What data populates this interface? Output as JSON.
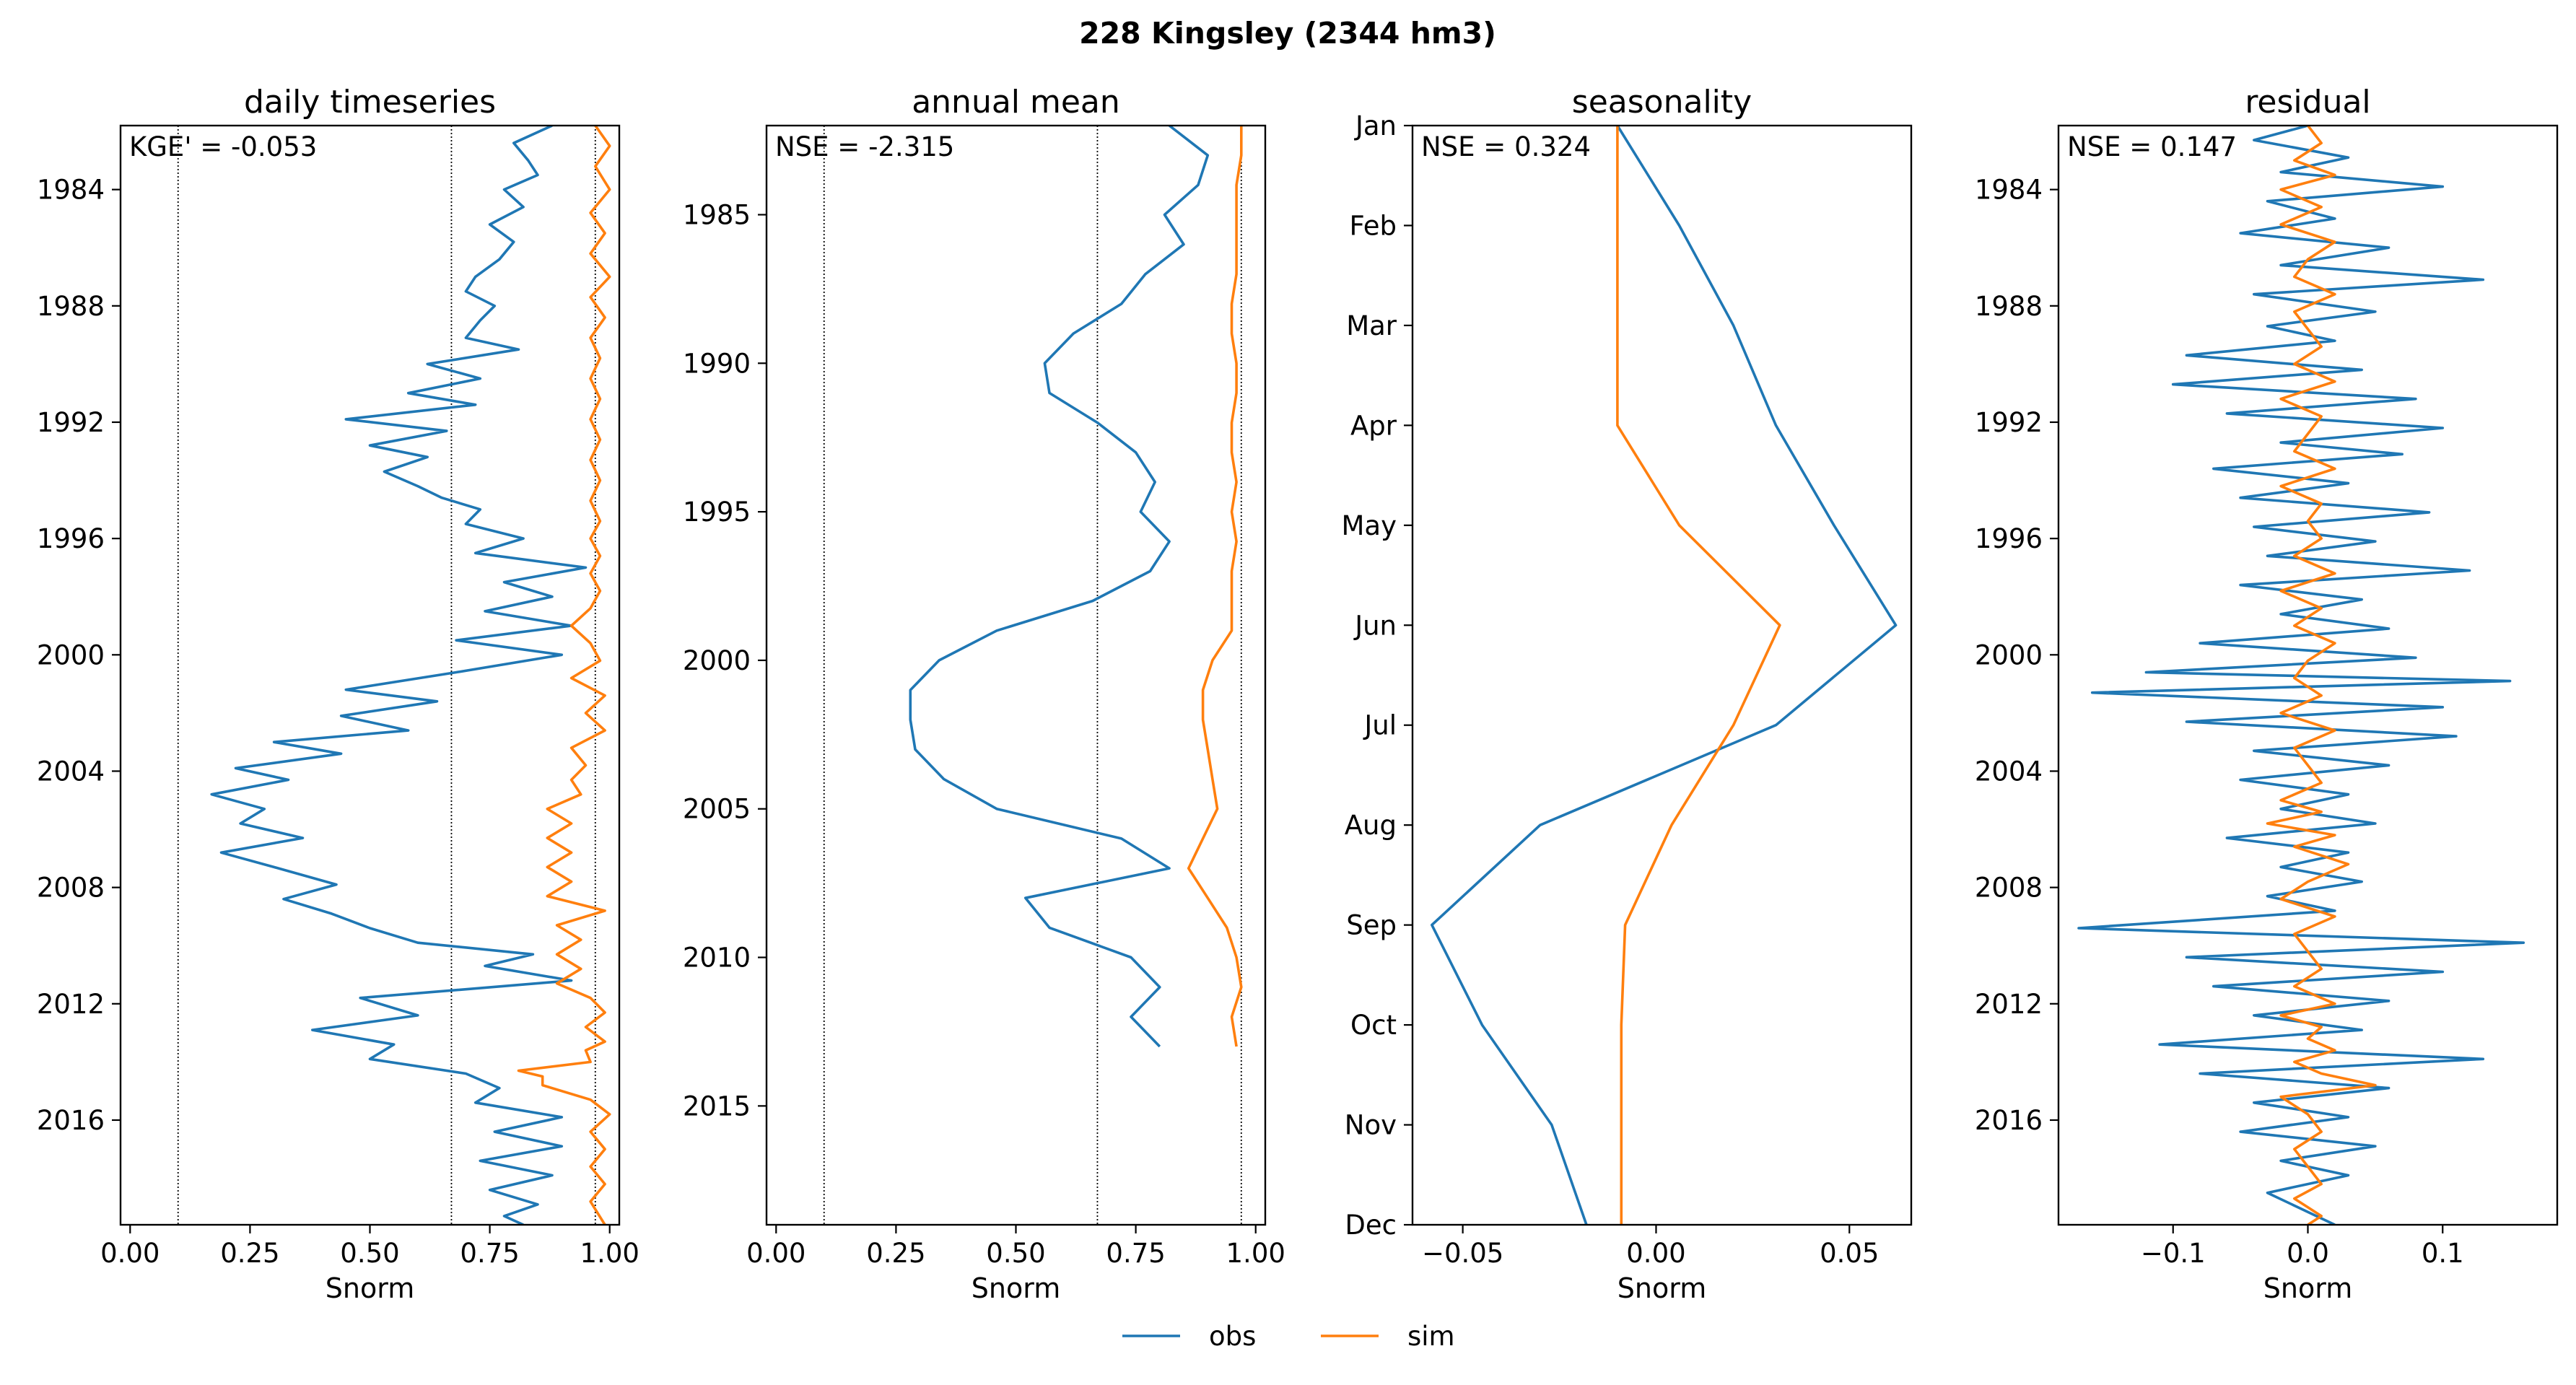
{
  "suptitle": "228  Kingsley (2344 hm3)",
  "colors": {
    "obs": "#1f77b4",
    "sim": "#ff7f0e"
  },
  "legend": [
    {
      "key": "obs",
      "label": "obs"
    },
    {
      "key": "sim",
      "label": "sim"
    }
  ],
  "chart_data": [
    {
      "type": "line",
      "title": "daily timeseries",
      "xlabel": "Snorm",
      "annotation": "KGE' = -0.053",
      "xlim": [
        -0.02,
        1.02
      ],
      "ylim": [
        2019.6,
        1981.8
      ],
      "xticks": [
        "0.00",
        "0.25",
        "0.50",
        "0.75",
        "1.00"
      ],
      "xtick_values": [
        0,
        0.25,
        0.5,
        0.75,
        1.0
      ],
      "yticks": [
        "1984",
        "1988",
        "1992",
        "1996",
        "2000",
        "2004",
        "2008",
        "2012",
        "2016"
      ],
      "ytick_values": [
        1984,
        1988,
        1992,
        1996,
        2000,
        2004,
        2008,
        2012,
        2016
      ],
      "vlines": [
        0.1,
        0.67,
        0.97
      ],
      "series": [
        {
          "key": "obs",
          "orientation": "vertical",
          "x": [
            0.88,
            0.8,
            0.83,
            0.85,
            0.78,
            0.82,
            0.75,
            0.8,
            0.77,
            0.72,
            0.7,
            0.76,
            0.73,
            0.7,
            0.81,
            0.62,
            0.73,
            0.58,
            0.72,
            0.45,
            0.66,
            0.5,
            0.62,
            0.53,
            0.6,
            0.65,
            0.73,
            0.7,
            0.82,
            0.72,
            0.95,
            0.78,
            0.88,
            0.74,
            0.92,
            0.68,
            0.9,
            0.68,
            0.45,
            0.64,
            0.44,
            0.58,
            0.3,
            0.44,
            0.22,
            0.33,
            0.17,
            0.28,
            0.23,
            0.36,
            0.19,
            0.3,
            0.43,
            0.32,
            0.42,
            0.5,
            0.6,
            0.84,
            0.74,
            0.92,
            0.48,
            0.6,
            0.38,
            0.55,
            0.5,
            0.7,
            0.77,
            0.72,
            0.9,
            0.76,
            0.9,
            0.73,
            0.88,
            0.75,
            0.85,
            0.78,
            0.82
          ],
          "y": [
            1981.8,
            1982.4,
            1983.0,
            1983.5,
            1984.0,
            1984.6,
            1985.2,
            1985.8,
            1986.4,
            1987.0,
            1987.5,
            1988.0,
            1988.5,
            1989.1,
            1989.5,
            1990.0,
            1990.5,
            1991.0,
            1991.4,
            1991.9,
            1992.3,
            1992.8,
            1993.2,
            1993.7,
            1994.2,
            1994.6,
            1995.0,
            1995.5,
            1996.0,
            1996.5,
            1997.0,
            1997.5,
            1998.0,
            1998.5,
            1999.0,
            1999.5,
            2000.0,
            2000.6,
            2001.2,
            2001.6,
            2002.1,
            2002.6,
            2003.0,
            2003.4,
            2003.9,
            2004.3,
            2004.8,
            2005.3,
            2005.8,
            2006.3,
            2006.8,
            2007.3,
            2007.9,
            2008.4,
            2008.9,
            2009.4,
            2009.9,
            2010.3,
            2010.7,
            2011.2,
            2011.8,
            2012.4,
            2012.9,
            2013.4,
            2013.9,
            2014.4,
            2014.9,
            2015.4,
            2015.9,
            2016.4,
            2016.9,
            2017.4,
            2017.9,
            2018.4,
            2018.9,
            2019.3,
            2019.6
          ]
        },
        {
          "key": "sim",
          "orientation": "vertical",
          "x": [
            0.97,
            1.0,
            0.97,
            1.0,
            0.96,
            0.99,
            0.96,
            1.0,
            0.96,
            0.99,
            0.96,
            0.98,
            0.96,
            0.98,
            0.96,
            0.98,
            0.96,
            0.98,
            0.96,
            0.98,
            0.96,
            0.98,
            0.96,
            0.98,
            0.96,
            0.92,
            0.96,
            0.98,
            0.92,
            0.99,
            0.95,
            0.99,
            0.92,
            0.95,
            0.92,
            0.94,
            0.87,
            0.92,
            0.87,
            0.92,
            0.87,
            0.92,
            0.87,
            0.99,
            0.89,
            0.94,
            0.89,
            0.94,
            0.89,
            0.96,
            0.99,
            0.95,
            0.99,
            0.95,
            0.96,
            0.81,
            0.86,
            0.86,
            0.96,
            1.0,
            0.96,
            0.99,
            0.96,
            0.99,
            0.96,
            0.99
          ],
          "y": [
            1981.8,
            1982.5,
            1983.2,
            1984.0,
            1984.8,
            1985.5,
            1986.2,
            1987.0,
            1987.7,
            1988.4,
            1989.1,
            1989.8,
            1990.5,
            1991.2,
            1991.9,
            1992.6,
            1993.3,
            1994.0,
            1994.7,
            1995.4,
            1996.0,
            1996.6,
            1997.2,
            1997.8,
            1998.4,
            1999.0,
            1999.6,
            2000.2,
            2000.8,
            2001.4,
            2002.0,
            2002.6,
            2003.2,
            2003.8,
            2004.3,
            2004.8,
            2005.3,
            2005.8,
            2006.3,
            2006.8,
            2007.3,
            2007.8,
            2008.3,
            2008.8,
            2009.3,
            2009.8,
            2010.3,
            2010.8,
            2011.3,
            2011.8,
            2012.3,
            2012.8,
            2013.3,
            2013.6,
            2014.0,
            2014.3,
            2014.5,
            2014.8,
            2015.3,
            2015.8,
            2016.4,
            2017.0,
            2017.6,
            2018.2,
            2018.8,
            2019.6
          ]
        }
      ]
    },
    {
      "type": "line",
      "title": "annual mean",
      "xlabel": "Snorm",
      "annotation": "NSE = -2.315",
      "xlim": [
        -0.02,
        1.02
      ],
      "ylim": [
        2019.0,
        1982.0
      ],
      "xticks": [
        "0.00",
        "0.25",
        "0.50",
        "0.75",
        "1.00"
      ],
      "xtick_values": [
        0,
        0.25,
        0.5,
        0.75,
        1.0
      ],
      "yticks": [
        "1985",
        "1990",
        "1995",
        "2000",
        "2005",
        "2010",
        "2015"
      ],
      "ytick_values": [
        1985,
        1990,
        1995,
        2000,
        2005,
        2010,
        2015
      ],
      "vlines": [
        0.1,
        0.67,
        0.97
      ],
      "series": [
        {
          "key": "obs",
          "orientation": "vertical",
          "x": [
            0.82,
            0.9,
            0.88,
            0.81,
            0.85,
            0.77,
            0.72,
            0.62,
            0.56,
            0.57,
            0.67,
            0.75,
            0.79,
            0.76,
            0.82,
            0.78,
            0.66,
            0.46,
            0.34,
            0.28,
            0.28,
            0.29,
            0.35,
            0.46,
            0.72,
            0.82,
            0.52,
            0.57,
            0.74,
            0.8,
            0.74,
            0.8
          ],
          "y": [
            1982,
            1983,
            1984,
            1985,
            1986,
            1987,
            1988,
            1989,
            1990,
            1991,
            1992,
            1993,
            1994,
            1995,
            1996,
            1997,
            1998,
            1999,
            2000,
            2001,
            2002,
            2003,
            2004,
            2005,
            2006,
            2007,
            2008,
            2009,
            2010,
            2011,
            2012,
            2013
          ]
        },
        {
          "key": "sim",
          "orientation": "vertical",
          "x": [
            0.97,
            0.97,
            0.96,
            0.96,
            0.96,
            0.96,
            0.95,
            0.95,
            0.96,
            0.96,
            0.95,
            0.95,
            0.96,
            0.95,
            0.96,
            0.95,
            0.95,
            0.95,
            0.91,
            0.89,
            0.89,
            0.9,
            0.91,
            0.92,
            0.89,
            0.86,
            0.9,
            0.94,
            0.96,
            0.97,
            0.95,
            0.96
          ],
          "y": [
            1982,
            1983,
            1984,
            1985,
            1986,
            1987,
            1988,
            1989,
            1990,
            1991,
            1992,
            1993,
            1994,
            1995,
            1996,
            1997,
            1998,
            1999,
            2000,
            2001,
            2002,
            2003,
            2004,
            2005,
            2006,
            2007,
            2008,
            2009,
            2010,
            2011,
            2012,
            2013
          ]
        }
      ]
    },
    {
      "type": "line",
      "title": "seasonality",
      "xlabel": "Snorm",
      "annotation": "NSE = 0.324",
      "xlim": [
        -0.063,
        0.066
      ],
      "ylim": [
        11,
        0
      ],
      "xticks": [
        "−0.05",
        "0.00",
        "0.05"
      ],
      "xtick_values": [
        -0.05,
        0,
        0.05
      ],
      "yticks": [
        "Jan",
        "Feb",
        "Mar",
        "Apr",
        "May",
        "Jun",
        "Jul",
        "Aug",
        "Sep",
        "Oct",
        "Nov",
        "Dec"
      ],
      "ytick_values": [
        0,
        1,
        2,
        3,
        4,
        5,
        6,
        7,
        8,
        9,
        10,
        11
      ],
      "vlines": [],
      "series": [
        {
          "key": "obs",
          "orientation": "vertical",
          "x": [
            -0.01,
            0.006,
            0.02,
            0.031,
            0.046,
            0.062,
            0.031,
            -0.03,
            -0.058,
            -0.045,
            -0.027,
            -0.018
          ],
          "y": [
            0,
            1,
            2,
            3,
            4,
            5,
            6,
            7,
            8,
            9,
            10,
            11
          ]
        },
        {
          "key": "sim",
          "orientation": "vertical",
          "x": [
            -0.01,
            -0.01,
            -0.01,
            -0.01,
            0.006,
            0.032,
            0.02,
            0.004,
            -0.008,
            -0.009,
            -0.009,
            -0.009
          ],
          "y": [
            0,
            1,
            2,
            3,
            4,
            5,
            6,
            7,
            8,
            9,
            10,
            11
          ]
        }
      ]
    },
    {
      "type": "line",
      "title": "residual",
      "xlabel": "Snorm",
      "annotation": "NSE = 0.147",
      "xlim": [
        -0.185,
        0.185
      ],
      "ylim": [
        2019.6,
        1981.8
      ],
      "xticks": [
        "−0.1",
        "0.0",
        "0.1"
      ],
      "xtick_values": [
        -0.1,
        0,
        0.1
      ],
      "yticks": [
        "1984",
        "1988",
        "1992",
        "1996",
        "2000",
        "2004",
        "2008",
        "2012",
        "2016"
      ],
      "ytick_values": [
        1984,
        1988,
        1992,
        1996,
        2000,
        2004,
        2008,
        2012,
        2016
      ],
      "vlines": [],
      "series": [
        {
          "key": "obs",
          "orientation": "vertical",
          "x": [
            0.0,
            -0.04,
            0.03,
            -0.02,
            0.1,
            -0.03,
            0.02,
            -0.05,
            0.06,
            -0.02,
            0.13,
            -0.04,
            0.05,
            -0.03,
            0.02,
            -0.09,
            0.04,
            -0.1,
            0.08,
            -0.06,
            0.1,
            -0.02,
            0.07,
            -0.07,
            0.03,
            -0.05,
            0.09,
            -0.04,
            0.05,
            -0.03,
            0.12,
            -0.05,
            0.04,
            -0.02,
            0.06,
            -0.08,
            0.08,
            -0.12,
            0.15,
            -0.16,
            0.1,
            -0.09,
            0.11,
            -0.04,
            0.06,
            -0.05,
            0.03,
            -0.02,
            0.05,
            -0.06,
            0.03,
            -0.02,
            0.04,
            -0.03,
            0.02,
            -0.17,
            0.16,
            -0.09,
            0.1,
            -0.07,
            0.06,
            -0.04,
            0.04,
            -0.11,
            0.13,
            -0.08,
            0.06,
            -0.04,
            0.03,
            -0.05,
            0.05,
            -0.02,
            0.03,
            -0.03,
            0.02
          ],
          "y": [
            1981.8,
            1982.3,
            1982.9,
            1983.4,
            1983.9,
            1984.4,
            1985.0,
            1985.5,
            1986.0,
            1986.6,
            1987.1,
            1987.6,
            1988.2,
            1988.7,
            1989.2,
            1989.7,
            1990.2,
            1990.7,
            1991.2,
            1991.7,
            1992.2,
            1992.7,
            1993.1,
            1993.6,
            1994.1,
            1994.6,
            1995.1,
            1995.6,
            1996.1,
            1996.6,
            1997.1,
            1997.6,
            1998.1,
            1998.6,
            1999.1,
            1999.6,
            2000.1,
            2000.6,
            2000.9,
            2001.3,
            2001.8,
            2002.3,
            2002.8,
            2003.3,
            2003.8,
            2004.3,
            2004.8,
            2005.3,
            2005.8,
            2006.3,
            2006.8,
            2007.3,
            2007.8,
            2008.3,
            2008.8,
            2009.4,
            2009.9,
            2010.4,
            2010.9,
            2011.4,
            2011.9,
            2012.4,
            2012.9,
            2013.4,
            2013.9,
            2014.4,
            2014.9,
            2015.4,
            2015.9,
            2016.4,
            2016.9,
            2017.4,
            2017.9,
            2018.5,
            2019.6
          ]
        },
        {
          "key": "sim",
          "orientation": "vertical",
          "x": [
            0.0,
            0.01,
            -0.01,
            0.02,
            -0.02,
            0.01,
            -0.02,
            0.02,
            0.0,
            -0.01,
            0.02,
            -0.01,
            0.0,
            0.01,
            -0.01,
            0.02,
            -0.02,
            0.01,
            0.0,
            -0.01,
            0.02,
            -0.02,
            0.01,
            0.0,
            0.01,
            -0.01,
            0.02,
            -0.02,
            0.01,
            -0.01,
            0.02,
            0.0,
            -0.01,
            0.01,
            -0.02,
            0.02,
            -0.01,
            0.0,
            0.01,
            -0.02,
            0.01,
            -0.03,
            0.02,
            -0.01,
            0.03,
            0.0,
            -0.02,
            0.02,
            -0.01,
            0.0,
            0.01,
            -0.01,
            0.02,
            -0.02,
            0.01,
            0.0,
            0.02,
            -0.01,
            0.01,
            0.05,
            -0.02,
            0.0,
            0.01,
            -0.01,
            0.0,
            0.01,
            -0.01,
            0.0,
            0.01,
            0.0
          ],
          "y": [
            1981.8,
            1982.4,
            1983.0,
            1983.5,
            1984.0,
            1984.6,
            1985.2,
            1985.8,
            1986.4,
            1987.0,
            1987.6,
            1988.2,
            1988.8,
            1989.4,
            1990.0,
            1990.6,
            1991.2,
            1991.8,
            1992.4,
            1993.0,
            1993.6,
            1994.2,
            1994.8,
            1995.4,
            1996.0,
            1996.6,
            1997.2,
            1997.8,
            1998.4,
            1999.0,
            1999.6,
            2000.2,
            2000.8,
            2001.4,
            2002.0,
            2002.6,
            2003.2,
            2003.8,
            2004.4,
            2005.0,
            2005.4,
            2005.8,
            2006.2,
            2006.6,
            2007.2,
            2007.8,
            2008.4,
            2009.0,
            2009.6,
            2010.2,
            2010.8,
            2011.4,
            2012.0,
            2012.4,
            2012.8,
            2013.2,
            2013.6,
            2014.0,
            2014.4,
            2014.8,
            2015.2,
            2015.8,
            2016.4,
            2017.0,
            2017.6,
            2018.2,
            2018.7,
            2019.0,
            2019.3,
            2019.6
          ]
        }
      ]
    }
  ]
}
